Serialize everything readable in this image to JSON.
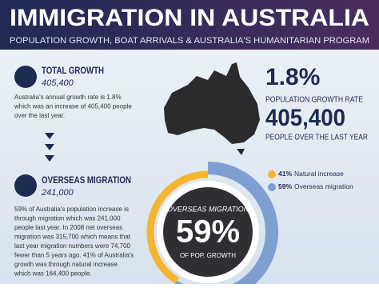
{
  "header": {
    "title": "IMMIGRATION IN AUSTRALIA",
    "subtitle": "POPULATION GROWTH, BOAT ARRIVALS & AUSTRALIA'S HUMANITARIAN PROGRAM"
  },
  "total_growth": {
    "heading": "TOTAL GROWTH",
    "value": "405,400",
    "lines": [
      "Australia's annual growth rate is 1.8%",
      "which was an increase of 405,400 people",
      "over the last year."
    ]
  },
  "overseas_migration": {
    "heading": "OVERSEAS MIGRATION",
    "value": "241,000",
    "lines": [
      "59% of Australia's population increase is",
      "through migration which was 241,000",
      "people last year. In 2008 net overseas",
      "migration was 315,700 which means that",
      "last year migration numbers were 74,700",
      "fewer than 5 years ago.  41% of Australia's",
      "growth was through natural increase",
      "which was 164,400 people."
    ]
  },
  "stats": [
    {
      "value": "1.8%",
      "label": "POPULATION GROWTH RATE"
    },
    {
      "value": "405,400",
      "label": "PEOPLE OVER THE LAST YEAR"
    }
  ],
  "donut": {
    "names": [
      "Natural increase",
      "Overseas migration"
    ],
    "values": [
      41,
      59
    ],
    "value_labels": [
      "41%",
      "59%"
    ],
    "colors": [
      "#f5b52e",
      "#7f9fd3"
    ],
    "center_title": "OVERSEAS MIGRATION",
    "center_value": "59%",
    "center_sub": "OF POP. GROWTH"
  }
}
